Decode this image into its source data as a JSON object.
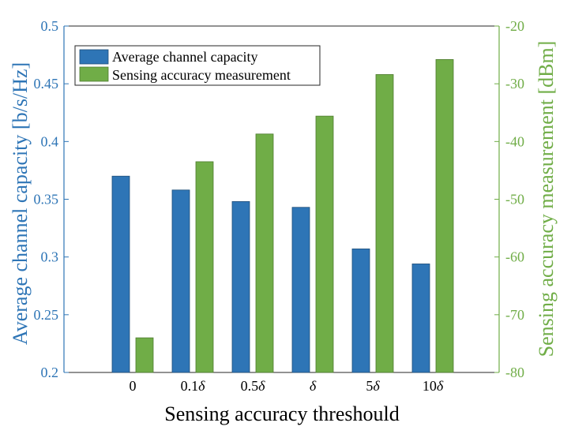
{
  "chart_data": {
    "type": "bar",
    "xlabel": "Sensing accuracy threshould",
    "categories": [
      {
        "label": "0",
        "italic": ""
      },
      {
        "label": "0.1",
        "italic": "δ"
      },
      {
        "label": "0.5",
        "italic": "δ"
      },
      {
        "label": "",
        "italic": "δ"
      },
      {
        "label": "5",
        "italic": "δ"
      },
      {
        "label": "10",
        "italic": "δ"
      }
    ],
    "left_axis": {
      "label": "Average channel capacity [b/s/Hz]",
      "ylim": [
        0.2,
        0.5
      ],
      "ticks": [
        "0.2",
        "0.25",
        "0.3",
        "0.35",
        "0.4",
        "0.45",
        "0.5"
      ],
      "color": "#2e75b6"
    },
    "right_axis": {
      "label": "Sensing accuracy measurement [dBm]",
      "ylim": [
        -80,
        -20
      ],
      "ticks": [
        "-80",
        "-70",
        "-60",
        "-50",
        "-40",
        "-30",
        "-20"
      ],
      "color": "#70ad47"
    },
    "series": [
      {
        "name": "Average channel capacity",
        "axis": "left",
        "color": "#2e75b6",
        "values": [
          0.37,
          0.358,
          0.348,
          0.343,
          0.307,
          0.294
        ]
      },
      {
        "name": "Sensing accuracy measurement",
        "axis": "right",
        "color": "#70ad47",
        "values": [
          -74,
          -43.5,
          -38.7,
          -35.6,
          -28.4,
          -25.8
        ]
      }
    ],
    "legend_position": "top-left",
    "grid": false
  }
}
